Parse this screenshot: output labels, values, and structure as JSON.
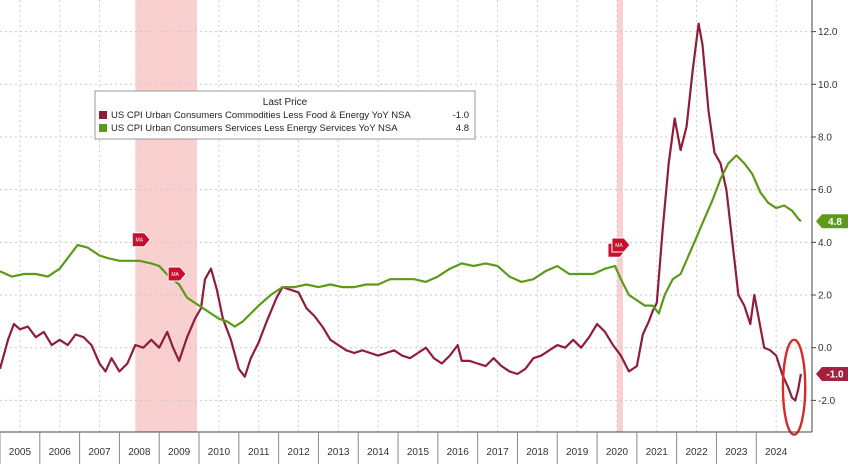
{
  "chart_data": {
    "type": "line",
    "legend": {
      "title": "Last Price",
      "placement": "top-left",
      "entries": [
        {
          "label": "US CPI Urban Consumers Commodities Less Food & Energy YoY NSA",
          "value": "-1.0"
        },
        {
          "label": "US CPI Urban Consumers Services Less Energy Services YoY NSA",
          "value": "4.8"
        }
      ]
    },
    "x_range": [
      2004.5,
      2024.9
    ],
    "ylim": [
      -3.2,
      13.2
    ],
    "grid": true,
    "y_axis_side": "right",
    "x_ticks": [
      {
        "label": "2005",
        "value": 2005.0
      },
      {
        "label": "2006",
        "value": 2006.0
      },
      {
        "label": "2007",
        "value": 2007.0
      },
      {
        "label": "2008",
        "value": 2008.0
      },
      {
        "label": "2009",
        "value": 2009.0
      },
      {
        "label": "2010",
        "value": 2010.0
      },
      {
        "label": "2011",
        "value": 2011.0
      },
      {
        "label": "2012",
        "value": 2012.0
      },
      {
        "label": "2013",
        "value": 2013.0
      },
      {
        "label": "2014",
        "value": 2014.0
      },
      {
        "label": "2015",
        "value": 2015.0
      },
      {
        "label": "2016",
        "value": 2016.0
      },
      {
        "label": "2017",
        "value": 2017.0
      },
      {
        "label": "2018",
        "value": 2018.0
      },
      {
        "label": "2019",
        "value": 2019.0
      },
      {
        "label": "2020",
        "value": 2020.0
      },
      {
        "label": "2021",
        "value": 2021.0
      },
      {
        "label": "2022",
        "value": 2022.0
      },
      {
        "label": "2023",
        "value": 2023.0
      },
      {
        "label": "2024",
        "value": 2024.0
      }
    ],
    "y_ticks": [
      {
        "label": "-2.0",
        "value": -2
      },
      {
        "label": "0.0",
        "value": 0
      },
      {
        "label": "2.0",
        "value": 2
      },
      {
        "label": "4.0",
        "value": 4
      },
      {
        "label": "6.0",
        "value": 6
      },
      {
        "label": "8.0",
        "value": 8
      },
      {
        "label": "10.0",
        "value": 10
      },
      {
        "label": "12.0",
        "value": 12
      }
    ],
    "shaded_periods": [
      {
        "start": 2007.9,
        "end": 2009.45
      },
      {
        "start": 2020.0,
        "end": 2020.15
      }
    ],
    "series": [
      {
        "color": "#8e1e3a",
        "points": [
          [
            2004.5,
            -0.8
          ],
          [
            2004.7,
            0.3
          ],
          [
            2004.85,
            0.9
          ],
          [
            2005.0,
            0.7
          ],
          [
            2005.2,
            0.8
          ],
          [
            2005.4,
            0.4
          ],
          [
            2005.6,
            0.6
          ],
          [
            2005.8,
            0.1
          ],
          [
            2006.0,
            0.3
          ],
          [
            2006.2,
            0.1
          ],
          [
            2006.4,
            0.5
          ],
          [
            2006.6,
            0.4
          ],
          [
            2006.8,
            0.1
          ],
          [
            2007.0,
            -0.6
          ],
          [
            2007.15,
            -0.9
          ],
          [
            2007.3,
            -0.4
          ],
          [
            2007.5,
            -0.9
          ],
          [
            2007.7,
            -0.6
          ],
          [
            2007.9,
            0.1
          ],
          [
            2008.1,
            0.0
          ],
          [
            2008.3,
            0.3
          ],
          [
            2008.5,
            0.0
          ],
          [
            2008.7,
            0.6
          ],
          [
            2008.85,
            0.0
          ],
          [
            2009.0,
            -0.5
          ],
          [
            2009.2,
            0.4
          ],
          [
            2009.4,
            1.1
          ],
          [
            2009.55,
            1.5
          ],
          [
            2009.65,
            2.6
          ],
          [
            2009.8,
            3.0
          ],
          [
            2009.95,
            2.2
          ],
          [
            2010.1,
            1.1
          ],
          [
            2010.3,
            0.3
          ],
          [
            2010.5,
            -0.8
          ],
          [
            2010.65,
            -1.1
          ],
          [
            2010.8,
            -0.4
          ],
          [
            2011.0,
            0.2
          ],
          [
            2011.2,
            1.0
          ],
          [
            2011.45,
            1.9
          ],
          [
            2011.6,
            2.3
          ],
          [
            2011.8,
            2.2
          ],
          [
            2012.0,
            2.1
          ],
          [
            2012.2,
            1.5
          ],
          [
            2012.4,
            1.2
          ],
          [
            2012.6,
            0.8
          ],
          [
            2012.8,
            0.3
          ],
          [
            2013.0,
            0.1
          ],
          [
            2013.2,
            -0.1
          ],
          [
            2013.4,
            -0.2
          ],
          [
            2013.6,
            -0.1
          ],
          [
            2013.8,
            -0.2
          ],
          [
            2014.0,
            -0.3
          ],
          [
            2014.2,
            -0.2
          ],
          [
            2014.4,
            -0.1
          ],
          [
            2014.6,
            -0.3
          ],
          [
            2014.8,
            -0.4
          ],
          [
            2015.0,
            -0.2
          ],
          [
            2015.2,
            0.0
          ],
          [
            2015.4,
            -0.4
          ],
          [
            2015.6,
            -0.6
          ],
          [
            2015.8,
            -0.3
          ],
          [
            2016.0,
            0.1
          ],
          [
            2016.1,
            -0.5
          ],
          [
            2016.3,
            -0.5
          ],
          [
            2016.5,
            -0.6
          ],
          [
            2016.7,
            -0.7
          ],
          [
            2016.9,
            -0.4
          ],
          [
            2017.1,
            -0.7
          ],
          [
            2017.3,
            -0.9
          ],
          [
            2017.5,
            -1.0
          ],
          [
            2017.7,
            -0.8
          ],
          [
            2017.9,
            -0.4
          ],
          [
            2018.1,
            -0.3
          ],
          [
            2018.3,
            -0.1
          ],
          [
            2018.5,
            0.1
          ],
          [
            2018.7,
            0.0
          ],
          [
            2018.9,
            0.3
          ],
          [
            2019.1,
            0.0
          ],
          [
            2019.3,
            0.4
          ],
          [
            2019.5,
            0.9
          ],
          [
            2019.7,
            0.6
          ],
          [
            2019.9,
            0.1
          ],
          [
            2020.1,
            -0.3
          ],
          [
            2020.3,
            -0.9
          ],
          [
            2020.5,
            -0.7
          ],
          [
            2020.65,
            0.5
          ],
          [
            2020.8,
            1.0
          ],
          [
            2020.9,
            1.4
          ],
          [
            2021.0,
            1.7
          ],
          [
            2021.15,
            4.5
          ],
          [
            2021.3,
            7.0
          ],
          [
            2021.45,
            8.7
          ],
          [
            2021.6,
            7.5
          ],
          [
            2021.75,
            8.4
          ],
          [
            2021.9,
            10.5
          ],
          [
            2022.05,
            12.3
          ],
          [
            2022.15,
            11.5
          ],
          [
            2022.3,
            9.0
          ],
          [
            2022.45,
            7.4
          ],
          [
            2022.6,
            7.0
          ],
          [
            2022.75,
            6.0
          ],
          [
            2022.9,
            4.0
          ],
          [
            2023.05,
            2.0
          ],
          [
            2023.2,
            1.6
          ],
          [
            2023.35,
            0.9
          ],
          [
            2023.45,
            2.0
          ],
          [
            2023.55,
            1.2
          ],
          [
            2023.7,
            0.0
          ],
          [
            2023.85,
            -0.1
          ],
          [
            2024.0,
            -0.3
          ],
          [
            2024.15,
            -1.0
          ],
          [
            2024.3,
            -1.5
          ],
          [
            2024.4,
            -1.9
          ],
          [
            2024.48,
            -2.0
          ],
          [
            2024.55,
            -1.6
          ],
          [
            2024.62,
            -1.0
          ]
        ]
      },
      {
        "color": "#5c9a1a",
        "points": [
          [
            2004.5,
            2.9
          ],
          [
            2004.8,
            2.7
          ],
          [
            2005.1,
            2.8
          ],
          [
            2005.4,
            2.8
          ],
          [
            2005.7,
            2.7
          ],
          [
            2006.0,
            3.0
          ],
          [
            2006.2,
            3.4
          ],
          [
            2006.45,
            3.9
          ],
          [
            2006.7,
            3.8
          ],
          [
            2007.0,
            3.5
          ],
          [
            2007.2,
            3.4
          ],
          [
            2007.5,
            3.3
          ],
          [
            2007.8,
            3.3
          ],
          [
            2008.0,
            3.3
          ],
          [
            2008.3,
            3.2
          ],
          [
            2008.5,
            3.1
          ],
          [
            2008.75,
            2.7
          ],
          [
            2009.0,
            2.4
          ],
          [
            2009.2,
            1.9
          ],
          [
            2009.4,
            1.7
          ],
          [
            2009.6,
            1.5
          ],
          [
            2009.8,
            1.3
          ],
          [
            2010.0,
            1.1
          ],
          [
            2010.2,
            1.0
          ],
          [
            2010.4,
            0.8
          ],
          [
            2010.6,
            1.0
          ],
          [
            2010.8,
            1.3
          ],
          [
            2011.0,
            1.6
          ],
          [
            2011.3,
            2.0
          ],
          [
            2011.6,
            2.3
          ],
          [
            2011.9,
            2.3
          ],
          [
            2012.2,
            2.4
          ],
          [
            2012.5,
            2.3
          ],
          [
            2012.8,
            2.4
          ],
          [
            2013.1,
            2.3
          ],
          [
            2013.4,
            2.3
          ],
          [
            2013.7,
            2.4
          ],
          [
            2014.0,
            2.4
          ],
          [
            2014.3,
            2.6
          ],
          [
            2014.6,
            2.6
          ],
          [
            2014.9,
            2.6
          ],
          [
            2015.2,
            2.5
          ],
          [
            2015.5,
            2.7
          ],
          [
            2015.8,
            3.0
          ],
          [
            2016.1,
            3.2
          ],
          [
            2016.4,
            3.1
          ],
          [
            2016.7,
            3.2
          ],
          [
            2017.0,
            3.1
          ],
          [
            2017.3,
            2.7
          ],
          [
            2017.6,
            2.5
          ],
          [
            2017.9,
            2.6
          ],
          [
            2018.2,
            2.9
          ],
          [
            2018.5,
            3.1
          ],
          [
            2018.8,
            2.8
          ],
          [
            2019.1,
            2.8
          ],
          [
            2019.4,
            2.8
          ],
          [
            2019.7,
            3.0
          ],
          [
            2019.95,
            3.1
          ],
          [
            2020.1,
            2.6
          ],
          [
            2020.3,
            2.0
          ],
          [
            2020.5,
            1.8
          ],
          [
            2020.7,
            1.6
          ],
          [
            2020.9,
            1.6
          ],
          [
            2021.05,
            1.3
          ],
          [
            2021.2,
            2.0
          ],
          [
            2021.4,
            2.6
          ],
          [
            2021.6,
            2.8
          ],
          [
            2021.8,
            3.5
          ],
          [
            2022.0,
            4.2
          ],
          [
            2022.2,
            4.9
          ],
          [
            2022.4,
            5.6
          ],
          [
            2022.6,
            6.4
          ],
          [
            2022.8,
            7.0
          ],
          [
            2023.0,
            7.3
          ],
          [
            2023.2,
            7.0
          ],
          [
            2023.4,
            6.6
          ],
          [
            2023.6,
            5.9
          ],
          [
            2023.8,
            5.5
          ],
          [
            2024.0,
            5.3
          ],
          [
            2024.2,
            5.4
          ],
          [
            2024.4,
            5.2
          ],
          [
            2024.55,
            4.9
          ],
          [
            2024.62,
            4.8
          ]
        ]
      }
    ],
    "event_markers": [
      {
        "label": "MA",
        "series_index": 1,
        "x": 2008.05,
        "y": 4.1
      },
      {
        "label": "MA",
        "series_index": 1,
        "x": 2008.95,
        "y": 2.8
      },
      {
        "label": "MA",
        "series_index": 1,
        "x": 2020.0,
        "y": 3.7
      },
      {
        "label": "MA",
        "series_index": 1,
        "x": 2020.1,
        "y": 3.9
      }
    ],
    "highlight": {
      "x": 2024.45,
      "y": -1.5,
      "rx_years": 0.28,
      "ry_value": 1.8,
      "color": "#d62b2b"
    },
    "last_value_tags": [
      {
        "label": "4.8",
        "y": 4.8,
        "color": "#5c9a1a"
      },
      {
        "label": "-1.0",
        "y": -1.0,
        "color": "#a3203f"
      }
    ]
  }
}
